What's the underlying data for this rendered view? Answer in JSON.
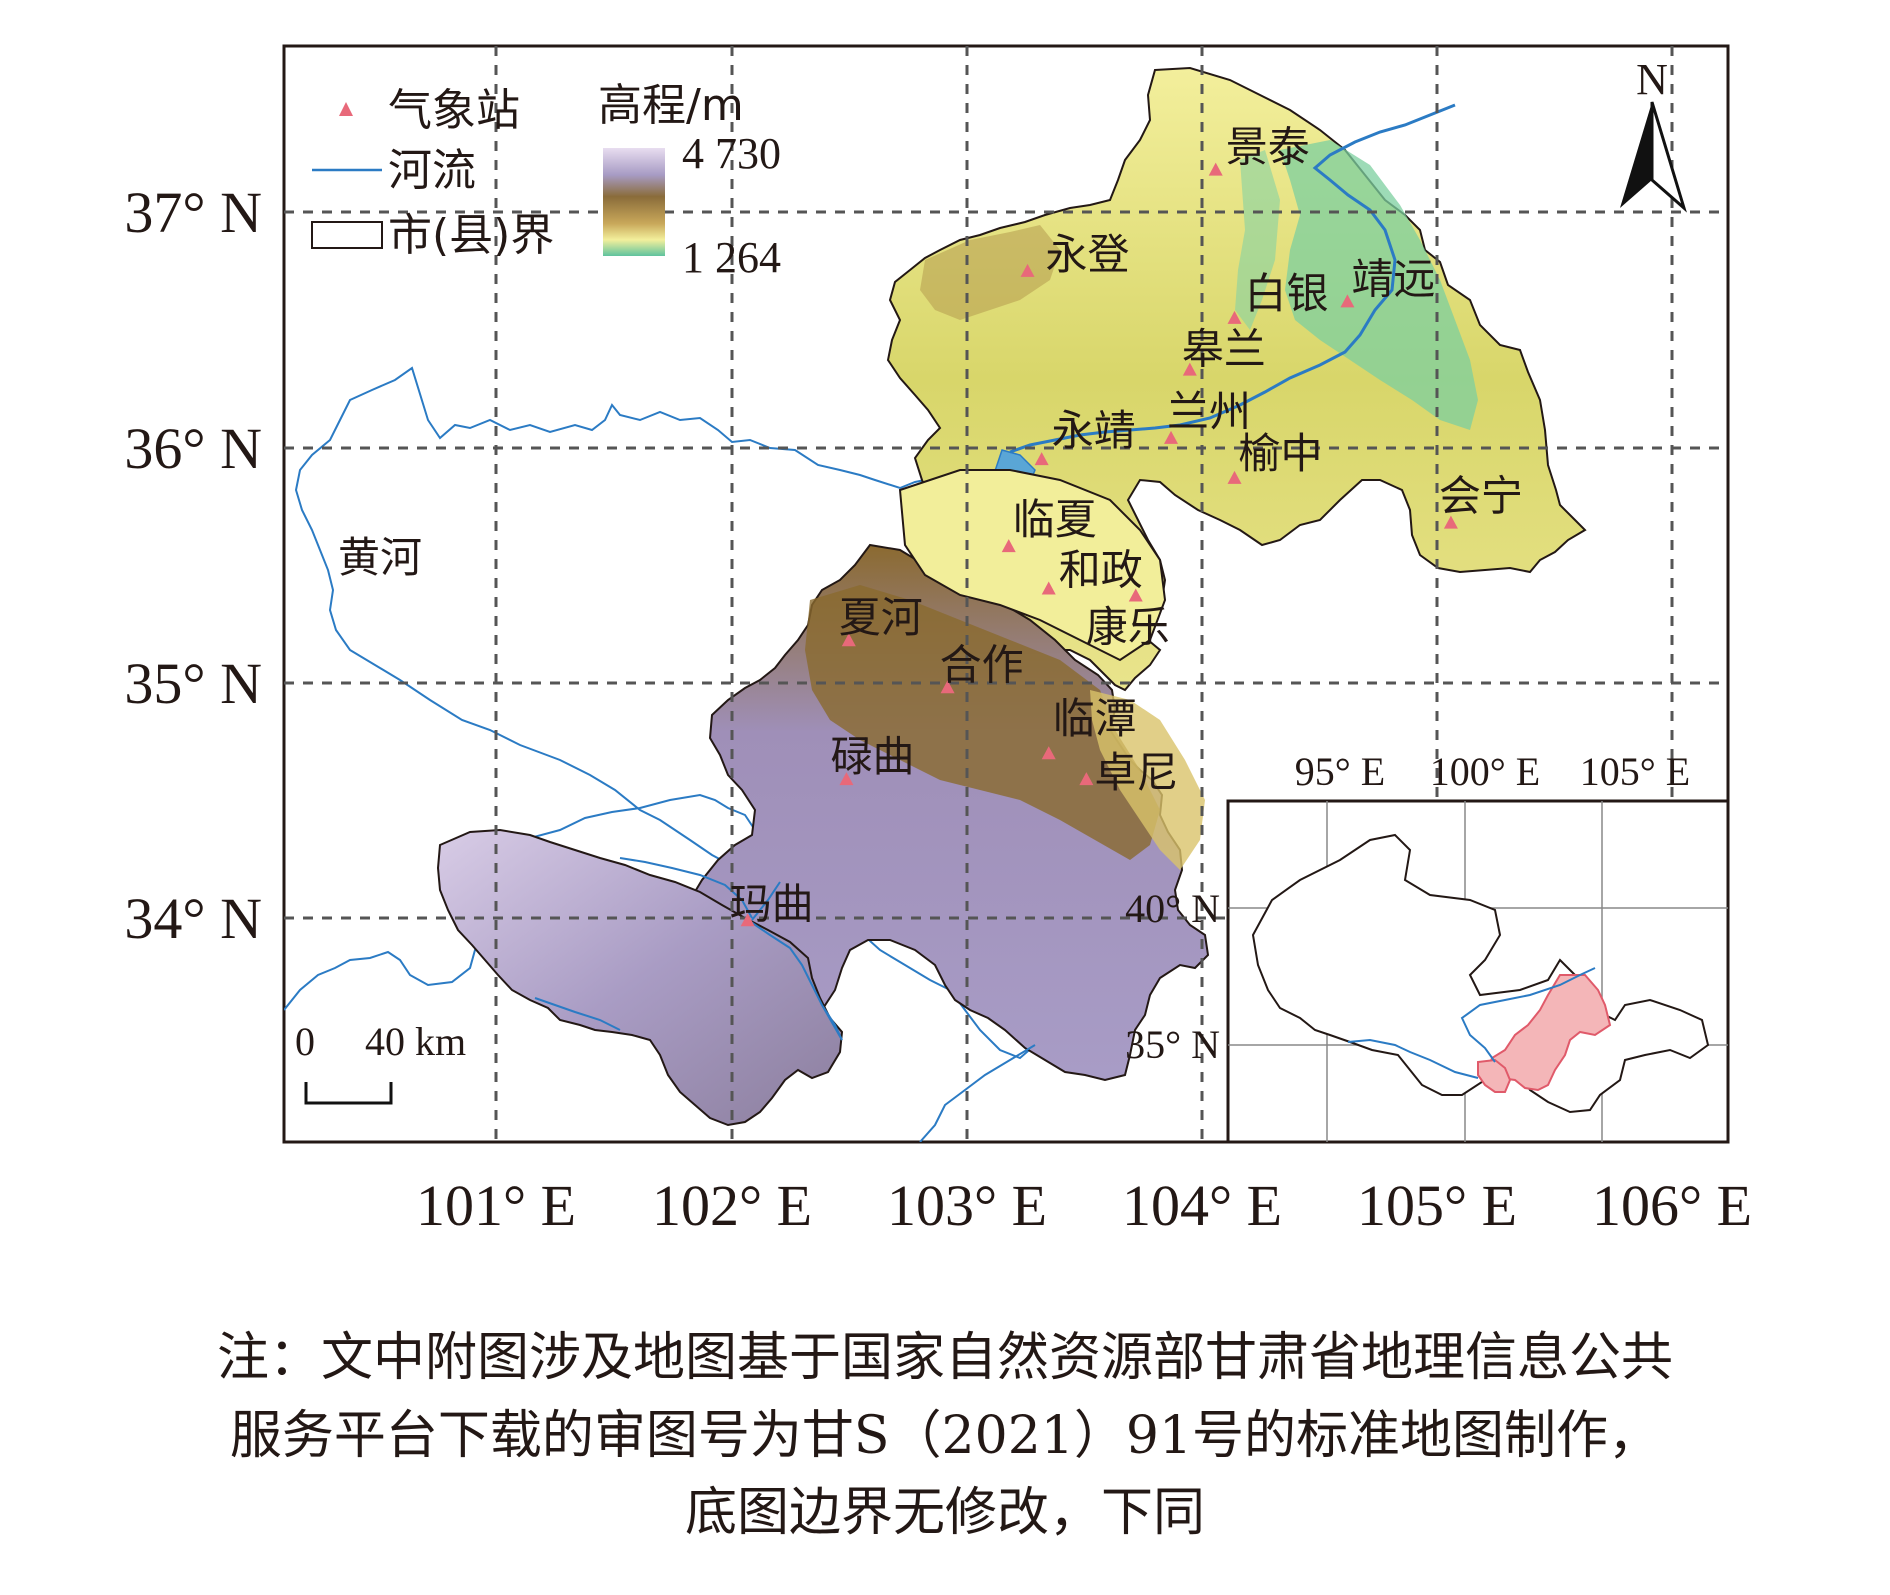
{
  "map": {
    "legend": {
      "station": "气象站",
      "river": "河流",
      "boundary": "市(县)界",
      "elevation_title": "高程/m",
      "elevation_max": "4 730",
      "elevation_min": "1 264"
    },
    "north_arrow": "N",
    "scale_bar": {
      "zero": "0",
      "distance": "40 km"
    },
    "river_name": "黄河",
    "lat_labels": [
      "37° N",
      "36° N",
      "35° N",
      "34° N"
    ],
    "lon_labels": [
      "101° E",
      "102° E",
      "103° E",
      "104° E",
      "105° E",
      "106° E"
    ],
    "stations": [
      {
        "name": "景泰",
        "lon": 104.06,
        "lat": 37.18
      },
      {
        "name": "永登",
        "lon": 103.26,
        "lat": 36.75
      },
      {
        "name": "白银",
        "lon": 104.14,
        "lat": 36.55
      },
      {
        "name": "靖远",
        "lon": 104.62,
        "lat": 36.62
      },
      {
        "name": "皋兰",
        "lon": 103.95,
        "lat": 36.33
      },
      {
        "name": "兰州",
        "lon": 103.87,
        "lat": 36.04
      },
      {
        "name": "永靖",
        "lon": 103.32,
        "lat": 35.95
      },
      {
        "name": "榆中",
        "lon": 104.14,
        "lat": 35.87
      },
      {
        "name": "会宁",
        "lon": 105.06,
        "lat": 35.68
      },
      {
        "name": "临夏",
        "lon": 103.18,
        "lat": 35.58
      },
      {
        "name": "和政",
        "lon": 103.35,
        "lat": 35.4
      },
      {
        "name": "康乐",
        "lon": 103.72,
        "lat": 35.37
      },
      {
        "name": "夏河",
        "lon": 102.5,
        "lat": 35.18
      },
      {
        "name": "合作",
        "lon": 102.92,
        "lat": 34.98
      },
      {
        "name": "临潭",
        "lon": 103.35,
        "lat": 34.7
      },
      {
        "name": "卓尼",
        "lon": 103.51,
        "lat": 34.59
      },
      {
        "name": "碌曲",
        "lon": 102.49,
        "lat": 34.59
      },
      {
        "name": "玛曲",
        "lon": 102.07,
        "lat": 33.99
      }
    ],
    "inset": {
      "lon_labels": [
        "95° E",
        "100° E",
        "105° E"
      ],
      "lat_labels": [
        "40° N",
        "35° N"
      ]
    }
  },
  "note": {
    "line1": "注：文中附图涉及地图基于国家自然资源部甘肃省地理信息公共",
    "line2": "服务平台下载的审图号为甘S（2021）91号的标准地图制作，",
    "line3": "底图边界无修改，下同"
  },
  "colors": {
    "station_marker": "#e8697a",
    "river": "#2b7bc4",
    "highlight_region": "#f4b6b8",
    "elev_high": "#c8b4d8",
    "elev_mid": "#8a6a2a",
    "elev_low": "#f2ee9a",
    "elev_lowest": "#6cc7a2"
  }
}
